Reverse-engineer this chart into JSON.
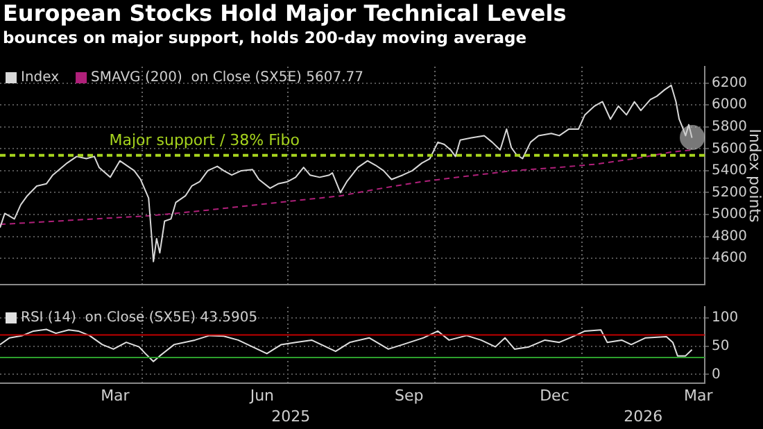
{
  "chart_data": [
    {
      "type": "line",
      "title": "European Stocks Hold Major Technical Levels",
      "subtitle": "bounces on major support, holds 200-day moving average",
      "ylabel": "Index points",
      "xlim": [
        "2025-01-02",
        "2026-03-19"
      ],
      "xticks": [
        {
          "value": "2025-04-01",
          "label": null
        },
        {
          "value": "2025-07-01",
          "label": null
        },
        {
          "value": "2025-10-01",
          "label": null
        },
        {
          "value": "2026-01-01",
          "label": null
        }
      ],
      "ylim": [
        4360,
        6350
      ],
      "yticks": [
        4600,
        4800,
        5000,
        5200,
        5400,
        5600,
        5800,
        6000,
        6200
      ],
      "tick_labels": "y",
      "grid": true,
      "legend": "top left",
      "marker": "none",
      "ref_lines": [
        {
          "axis": "y",
          "value": 5540,
          "label": "Major support / 38% Fibo",
          "color": "#a6d41e",
          "line_style": "dashed"
        }
      ],
      "series": [
        {
          "name": "Index",
          "color": "#d9d9d9",
          "line_style": "solid",
          "x": [
            "2025-01-02",
            "2025-01-05",
            "2025-01-11",
            "2025-01-15",
            "2025-01-19",
            "2025-01-25",
            "2025-01-31",
            "2025-02-04",
            "2025-02-13",
            "2025-02-19",
            "2025-02-25",
            "2025-03-02",
            "2025-03-05",
            "2025-03-12",
            "2025-03-18",
            "2025-03-27",
            "2025-03-31",
            "2025-04-05",
            "2025-04-07",
            "2025-04-08",
            "2025-04-10",
            "2025-04-12",
            "2025-04-15",
            "2025-04-19",
            "2025-04-22",
            "2025-04-28",
            "2025-05-02",
            "2025-05-07",
            "2025-05-12",
            "2025-05-18",
            "2025-05-22",
            "2025-05-27",
            "2025-06-02",
            "2025-06-09",
            "2025-06-13",
            "2025-06-20",
            "2025-06-25",
            "2025-07-01",
            "2025-07-06",
            "2025-07-11",
            "2025-07-15",
            "2025-07-21",
            "2025-07-27",
            "2025-07-29",
            "2025-08-03",
            "2025-08-07",
            "2025-08-14",
            "2025-08-20",
            "2025-08-25",
            "2025-08-30",
            "2025-09-04",
            "2025-09-11",
            "2025-09-17",
            "2025-09-23",
            "2025-09-28",
            "2025-10-03",
            "2025-10-07",
            "2025-10-11",
            "2025-10-14",
            "2025-10-17",
            "2025-10-24",
            "2025-11-01",
            "2025-11-06",
            "2025-11-11",
            "2025-11-15",
            "2025-11-18",
            "2025-11-21",
            "2025-11-25",
            "2025-11-30",
            "2025-12-05",
            "2025-12-13",
            "2025-12-18",
            "2025-12-24",
            "2025-12-30",
            "2026-01-03",
            "2026-01-09",
            "2026-01-14",
            "2026-01-19",
            "2026-01-24",
            "2026-01-29",
            "2026-02-03",
            "2026-02-07",
            "2026-02-13",
            "2026-02-17",
            "2026-02-22",
            "2026-02-26",
            "2026-03-01",
            "2026-03-03",
            "2026-03-05",
            "2026-03-07",
            "2026-03-09",
            "2026-03-11"
          ],
          "values": [
            4880,
            5010,
            4960,
            5090,
            5170,
            5260,
            5280,
            5360,
            5470,
            5530,
            5510,
            5530,
            5430,
            5340,
            5490,
            5400,
            5320,
            5150,
            4780,
            4570,
            4780,
            4650,
            4940,
            4960,
            5110,
            5170,
            5260,
            5300,
            5400,
            5440,
            5400,
            5360,
            5400,
            5410,
            5320,
            5240,
            5280,
            5300,
            5340,
            5430,
            5360,
            5340,
            5360,
            5380,
            5200,
            5300,
            5430,
            5490,
            5450,
            5400,
            5320,
            5360,
            5400,
            5470,
            5510,
            5660,
            5640,
            5590,
            5530,
            5680,
            5700,
            5720,
            5660,
            5590,
            5780,
            5610,
            5550,
            5510,
            5660,
            5720,
            5740,
            5720,
            5780,
            5780,
            5910,
            5990,
            6030,
            5870,
            5990,
            5910,
            6030,
            5950,
            6050,
            6080,
            6140,
            6180,
            6030,
            5870,
            5800,
            5720,
            5820,
            5700
          ]
        },
        {
          "name": "SMAVG (200)  on Close (SX5E) 5607.77",
          "color": "#b0207a",
          "line_style": "dashed",
          "x": [
            "2025-01-02",
            "2025-04-07",
            "2025-05-12",
            "2025-06-25",
            "2025-08-03",
            "2025-08-25",
            "2025-09-23",
            "2025-10-21",
            "2025-11-19",
            "2025-12-18",
            "2026-01-10",
            "2026-02-03",
            "2026-02-26",
            "2026-03-11"
          ],
          "values": [
            4910,
            4990,
            5040,
            5110,
            5170,
            5230,
            5300,
            5350,
            5400,
            5430,
            5460,
            5510,
            5570,
            5590
          ]
        }
      ]
    },
    {
      "type": "line",
      "xlim": [
        "2025-01-02",
        "2026-03-19"
      ],
      "xticks": [
        {
          "value": "2025-03-15",
          "label": "Mar"
        },
        {
          "value": "2025-04-01",
          "label": null
        },
        {
          "value": "2025-06-15",
          "label": "Jun"
        },
        {
          "value": "2025-07-01",
          "label": null
        },
        {
          "value": "2025-09-15",
          "label": "Sep"
        },
        {
          "value": "2025-10-01",
          "label": null
        },
        {
          "value": "2025-12-15",
          "label": "Dec"
        },
        {
          "value": "2026-01-01",
          "label": null
        },
        {
          "value": "2026-03-15",
          "label": "Mar"
        }
      ],
      "ylim": [
        -15,
        120
      ],
      "yticks": [
        0,
        50,
        100
      ],
      "grid": true,
      "legend": "top left",
      "marker": "none",
      "ref_lines": [
        {
          "axis": "y",
          "value": 70,
          "color": "#c00000",
          "line_style": "solid"
        },
        {
          "axis": "y",
          "value": 30,
          "color": "#2ca02c",
          "line_style": "solid"
        }
      ],
      "annotations": [
        "2025",
        "2026"
      ],
      "series": [
        {
          "name": "RSI (14)  on Close (SX5E) 43.5905",
          "color": "#e0e0e0",
          "line_style": "solid",
          "x": [
            "2025-01-02",
            "2025-01-08",
            "2025-01-16",
            "2025-01-23",
            "2025-01-31",
            "2025-02-06",
            "2025-02-14",
            "2025-02-20",
            "2025-02-27",
            "2025-03-07",
            "2025-03-14",
            "2025-03-22",
            "2025-03-30",
            "2025-04-03",
            "2025-04-08",
            "2025-04-12",
            "2025-04-21",
            "2025-05-04",
            "2025-05-13",
            "2025-05-22",
            "2025-05-31",
            "2025-06-09",
            "2025-06-18",
            "2025-06-27",
            "2025-07-06",
            "2025-07-16",
            "2025-07-22",
            "2025-07-31",
            "2025-08-09",
            "2025-08-21",
            "2025-09-02",
            "2025-09-11",
            "2025-09-24",
            "2025-10-03",
            "2025-10-10",
            "2025-10-21",
            "2025-10-30",
            "2025-11-08",
            "2025-11-14",
            "2025-11-20",
            "2025-11-29",
            "2025-12-09",
            "2025-12-18",
            "2025-12-28",
            "2026-01-03",
            "2026-01-13",
            "2026-01-17",
            "2026-01-26",
            "2026-02-01",
            "2026-02-10",
            "2026-02-23",
            "2026-02-27",
            "2026-03-02",
            "2026-03-07",
            "2026-03-11"
          ],
          "values": [
            53,
            65,
            69,
            77,
            80,
            73,
            79,
            77,
            69,
            53,
            45,
            57,
            49,
            37,
            23,
            33,
            53,
            61,
            69,
            68,
            61,
            49,
            37,
            53,
            57,
            61,
            53,
            41,
            57,
            65,
            45,
            53,
            65,
            77,
            61,
            69,
            61,
            49,
            65,
            45,
            49,
            61,
            57,
            69,
            77,
            79,
            57,
            61,
            53,
            65,
            67,
            57,
            33,
            33,
            44
          ]
        }
      ]
    }
  ]
}
